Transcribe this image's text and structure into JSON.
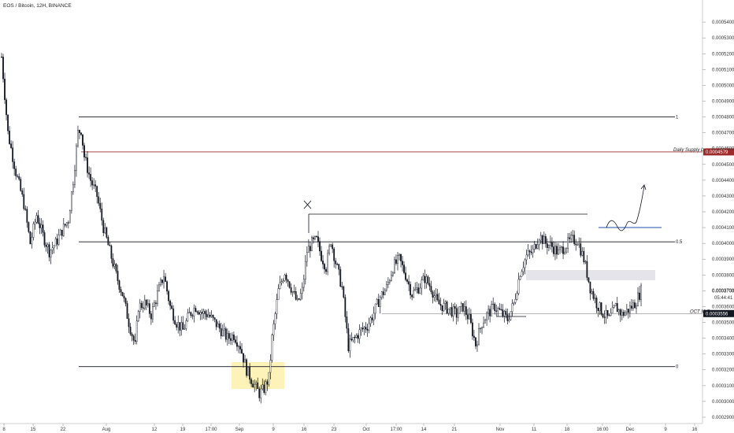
{
  "header": {
    "title": "EOS / Bitcoin, 12H, BINANCE"
  },
  "chart_data": {
    "type": "candlestick",
    "title": "EOS / Bitcoin, 12H, BINANCE",
    "xlabel": "",
    "ylabel": "",
    "ylim": [
      0.000286,
      0.000554
    ],
    "grid": false,
    "y_ticks": [
      "0.0005400",
      "0.0005300",
      "0.0005200",
      "0.0005100",
      "0.0005000",
      "0.0004900",
      "0.0004800",
      "0.0004700",
      "0.0004600",
      "0.0004500",
      "0.0004400",
      "0.0004300",
      "0.0004200",
      "0.0004100",
      "0.0004000",
      "0.0003900",
      "0.0003800",
      "0.0003700",
      "0.0003600",
      "0.0003500",
      "0.0003400",
      "0.0003300",
      "0.0003200",
      "0.0003100",
      "0.0003000",
      "0.0002900"
    ],
    "x_ticks": [
      "8",
      "15",
      "22",
      "Aug",
      "12",
      "19",
      "17:00",
      "Sep",
      "9",
      "16",
      "23",
      "Oct",
      "17:00",
      "14",
      "21",
      "Nov",
      "11",
      "18",
      "16:00",
      "Dec",
      "9",
      "16"
    ],
    "candle_color": "#131722",
    "colors": {
      "daily_supply": "#9c2a2a",
      "blue_line": "#1f4fa8",
      "highlight_yellow": "#fdf3b8",
      "highlight_gray": "#e4e4ea",
      "current_tag": "#131722"
    },
    "levels": [
      {
        "label": "1",
        "value": 0.00048,
        "x_start": "Jul 24"
      },
      {
        "label": "0.5",
        "value": 0.000401,
        "x_start": "Jul 24"
      },
      {
        "label": "0",
        "value": 0.000322,
        "x_start": "Jul 24"
      }
    ],
    "daily_supply_low": {
      "label": "Daily Supply Low",
      "price_tag": "0.0004579",
      "value": 0.0004579
    },
    "oct_mo": {
      "label": "OCT M.O",
      "price_tag": "0.0003556",
      "value": 0.0003556
    },
    "current_price": {
      "price_tag": "0.0003703",
      "countdown": "05:44:41",
      "value": 0.0003703
    },
    "annotations": [
      {
        "type": "cross",
        "label": "X"
      },
      {
        "type": "projected_path",
        "direction": "up"
      }
    ],
    "series": [
      {
        "name": "",
        "approx_path": [
          [
            0,
            0.000518
          ],
          [
            4,
            0.00047
          ],
          [
            9,
            0.000445
          ],
          [
            14,
            0.000425
          ],
          [
            18,
            0.0004
          ],
          [
            22,
            0.000418
          ],
          [
            26,
            0.000405
          ],
          [
            30,
            0.000395
          ],
          [
            34,
            0.0004
          ],
          [
            38,
            0.000408
          ],
          [
            42,
            0.000415
          ],
          [
            45,
            0.00044
          ],
          [
            48,
            0.00047
          ],
          [
            50,
            0.000472
          ],
          [
            52,
            0.000455
          ],
          [
            56,
            0.00044
          ],
          [
            60,
            0.00043
          ],
          [
            64,
            0.00041
          ],
          [
            68,
            0.000395
          ],
          [
            72,
            0.00038
          ],
          [
            76,
            0.000368
          ],
          [
            80,
            0.00035
          ],
          [
            84,
            0.000335
          ],
          [
            86,
            0.00036
          ],
          [
            90,
            0.000362
          ],
          [
            94,
            0.000355
          ],
          [
            98,
            0.000368
          ],
          [
            102,
            0.00038
          ],
          [
            106,
            0.00036
          ],
          [
            110,
            0.00035
          ],
          [
            114,
            0.000345
          ],
          [
            118,
            0.000355
          ],
          [
            122,
            0.00036
          ],
          [
            126,
            0.000356
          ],
          [
            130,
            0.000355
          ],
          [
            134,
            0.00035
          ],
          [
            138,
            0.000345
          ],
          [
            142,
            0.00034
          ],
          [
            146,
            0.000342
          ],
          [
            150,
            0.000335
          ],
          [
            154,
            0.00032
          ],
          [
            158,
            0.000312
          ],
          [
            162,
            0.000305
          ],
          [
            165,
            0.000308
          ],
          [
            168,
            0.000315
          ],
          [
            170,
            0.00034
          ],
          [
            174,
            0.00037
          ],
          [
            178,
            0.000382
          ],
          [
            182,
            0.000372
          ],
          [
            186,
            0.000362
          ],
          [
            189,
            0.00037
          ],
          [
            192,
            0.000395
          ],
          [
            195,
            0.0004
          ],
          [
            198,
            0.000402
          ],
          [
            201,
            0.000392
          ],
          [
            204,
            0.000385
          ],
          [
            207,
            0.000402
          ],
          [
            210,
            0.000388
          ],
          [
            214,
            0.000372
          ],
          [
            218,
            0.000335
          ],
          [
            222,
            0.00034
          ],
          [
            226,
            0.000345
          ],
          [
            230,
            0.000348
          ],
          [
            234,
            0.000356
          ],
          [
            238,
            0.000366
          ],
          [
            242,
            0.000372
          ],
          [
            246,
            0.000385
          ],
          [
            250,
            0.00039
          ],
          [
            254,
            0.00038
          ],
          [
            258,
            0.000368
          ],
          [
            262,
            0.000372
          ],
          [
            266,
            0.000378
          ],
          [
            270,
            0.000372
          ],
          [
            274,
            0.000362
          ],
          [
            278,
            0.00036
          ],
          [
            282,
            0.000358
          ],
          [
            286,
            0.000355
          ],
          [
            290,
            0.00036
          ],
          [
            294,
            0.000352
          ],
          [
            298,
            0.000336
          ],
          [
            302,
            0.00035
          ],
          [
            306,
            0.000356
          ],
          [
            310,
            0.00036
          ],
          [
            314,
            0.000356
          ],
          [
            318,
            0.000352
          ],
          [
            322,
            0.000362
          ],
          [
            326,
            0.000382
          ],
          [
            330,
            0.000392
          ],
          [
            334,
            0.000395
          ],
          [
            338,
            0.000405
          ],
          [
            342,
            0.0004
          ],
          [
            346,
            0.000398
          ],
          [
            350,
            0.000394
          ],
          [
            354,
            0.000398
          ],
          [
            358,
            0.000402
          ],
          [
            362,
            0.000402
          ],
          [
            366,
            0.00039
          ],
          [
            370,
            0.000372
          ],
          [
            374,
            0.000362
          ],
          [
            378,
            0.000356
          ],
          [
            382,
            0.000352
          ],
          [
            386,
            0.00036
          ],
          [
            390,
            0.000355
          ],
          [
            394,
            0.000358
          ],
          [
            398,
            0.000362
          ],
          [
            402,
            0.00037
          ]
        ]
      }
    ]
  }
}
